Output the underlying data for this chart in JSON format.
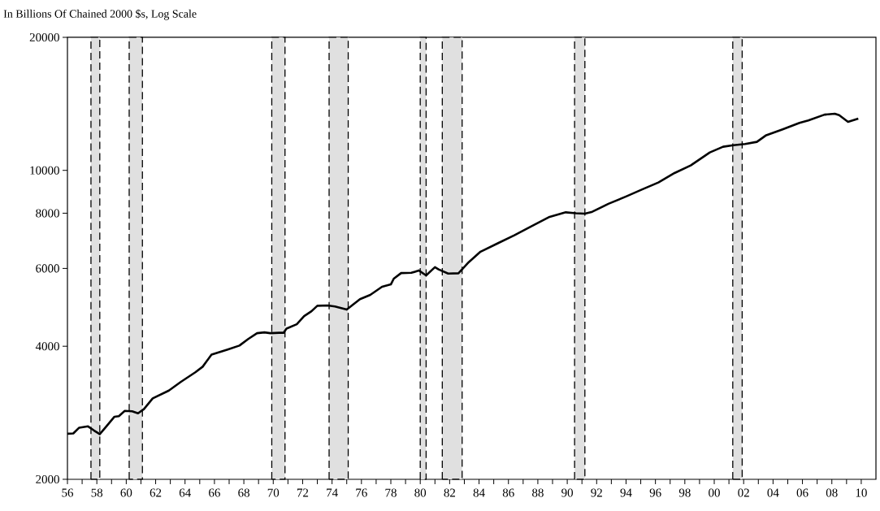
{
  "chart_data": {
    "type": "line",
    "ylabel": "In Billions Of Chained 2000 $s, Log Scale",
    "log": "y",
    "xlim": [
      1956,
      2011
    ],
    "ylim": [
      2000,
      20000
    ],
    "yticks": [
      2000,
      4000,
      6000,
      8000,
      10000,
      20000
    ],
    "xticks": [
      {
        "value": 1956,
        "label": "56"
      },
      {
        "value": 1957,
        "label": null
      },
      {
        "value": 1958,
        "label": "58"
      },
      {
        "value": 1959,
        "label": null
      },
      {
        "value": 1960,
        "label": "60"
      },
      {
        "value": 1961,
        "label": null
      },
      {
        "value": 1962,
        "label": "62"
      },
      {
        "value": 1963,
        "label": null
      },
      {
        "value": 1964,
        "label": "64"
      },
      {
        "value": 1965,
        "label": null
      },
      {
        "value": 1966,
        "label": "66"
      },
      {
        "value": 1967,
        "label": null
      },
      {
        "value": 1968,
        "label": "68"
      },
      {
        "value": 1969,
        "label": null
      },
      {
        "value": 1970,
        "label": "70"
      },
      {
        "value": 1971,
        "label": null
      },
      {
        "value": 1972,
        "label": "72"
      },
      {
        "value": 1973,
        "label": null
      },
      {
        "value": 1974,
        "label": "74"
      },
      {
        "value": 1975,
        "label": null
      },
      {
        "value": 1976,
        "label": "76"
      },
      {
        "value": 1977,
        "label": null
      },
      {
        "value": 1978,
        "label": "78"
      },
      {
        "value": 1979,
        "label": null
      },
      {
        "value": 1980,
        "label": "80"
      },
      {
        "value": 1981,
        "label": null
      },
      {
        "value": 1982,
        "label": "82"
      },
      {
        "value": 1983,
        "label": null
      },
      {
        "value": 1984,
        "label": "84"
      },
      {
        "value": 1985,
        "label": null
      },
      {
        "value": 1986,
        "label": "86"
      },
      {
        "value": 1987,
        "label": null
      },
      {
        "value": 1988,
        "label": "88"
      },
      {
        "value": 1989,
        "label": null
      },
      {
        "value": 1990,
        "label": "90"
      },
      {
        "value": 1991,
        "label": null
      },
      {
        "value": 1992,
        "label": "92"
      },
      {
        "value": 1993,
        "label": null
      },
      {
        "value": 1994,
        "label": "94"
      },
      {
        "value": 1995,
        "label": null
      },
      {
        "value": 1996,
        "label": "96"
      },
      {
        "value": 1997,
        "label": null
      },
      {
        "value": 1998,
        "label": "98"
      },
      {
        "value": 1999,
        "label": null
      },
      {
        "value": 2000,
        "label": "00"
      },
      {
        "value": 2001,
        "label": null
      },
      {
        "value": 2002,
        "label": "02"
      },
      {
        "value": 2003,
        "label": null
      },
      {
        "value": 2004,
        "label": "04"
      },
      {
        "value": 2005,
        "label": null
      },
      {
        "value": 2006,
        "label": "06"
      },
      {
        "value": 2007,
        "label": null
      },
      {
        "value": 2008,
        "label": "08"
      },
      {
        "value": 2009,
        "label": null
      },
      {
        "value": 2010,
        "label": "10"
      }
    ],
    "x": [
      1956.0,
      1956.4,
      1956.8,
      1957.4,
      1957.8,
      1958.2,
      1958.6,
      1959.2,
      1959.5,
      1959.9,
      1960.4,
      1960.8,
      1961.2,
      1961.8,
      1962.9,
      1963.7,
      1964.7,
      1965.2,
      1965.8,
      1966.9,
      1967.7,
      1968.3,
      1968.9,
      1969.4,
      1969.8,
      1970.4,
      1970.7,
      1970.9,
      1971.6,
      1972.1,
      1972.6,
      1973.0,
      1973.7,
      1974.2,
      1975.0,
      1975.9,
      1976.6,
      1977.4,
      1978.0,
      1978.2,
      1978.7,
      1979.4,
      1979.9,
      1980.4,
      1981.0,
      1981.25,
      1981.9,
      1982.6,
      1983.3,
      1984.1,
      1985.3,
      1986.4,
      1987.5,
      1988.8,
      1989.9,
      1990.6,
      1991.2,
      1991.7,
      1992.8,
      1994.0,
      1995.1,
      1996.2,
      1997.3,
      1998.4,
      1999.7,
      2000.6,
      2001.3,
      2002.1,
      2002.9,
      2003.5,
      2004.65,
      2005.8,
      2006.4,
      2007.5,
      2008.2,
      2008.5,
      2009.1,
      2009.8
    ],
    "series": [
      {
        "color": "#000000",
        "line_style": "solid",
        "values": [
          2536,
          2540,
          2617,
          2635,
          2580,
          2530,
          2624,
          2771,
          2780,
          2857,
          2850,
          2820,
          2882,
          3049,
          3176,
          3320,
          3493,
          3596,
          3829,
          3934,
          4014,
          4154,
          4282,
          4300,
          4282,
          4290,
          4290,
          4386,
          4485,
          4679,
          4800,
          4939,
          4946,
          4920,
          4841,
          5113,
          5227,
          5454,
          5520,
          5689,
          5856,
          5864,
          5937,
          5786,
          6038,
          5970,
          5841,
          5850,
          6200,
          6547,
          6846,
          7131,
          7456,
          7850,
          8037,
          8000,
          7982,
          8060,
          8400,
          8726,
          9055,
          9388,
          9863,
          10260,
          10980,
          11310,
          11400,
          11470,
          11600,
          11990,
          12380,
          12810,
          12970,
          13370,
          13430,
          13330,
          12880,
          13100
        ]
      }
    ],
    "bands": [
      {
        "axis": "x",
        "from": 1957.6,
        "to": 1958.2,
        "color": "#e0e0e0"
      },
      {
        "axis": "x",
        "from": 1960.2,
        "to": 1961.1,
        "color": "#e0e0e0"
      },
      {
        "axis": "x",
        "from": 1969.9,
        "to": 1970.8,
        "color": "#e0e0e0"
      },
      {
        "axis": "x",
        "from": 1973.8,
        "to": 1975.1,
        "color": "#e0e0e0"
      },
      {
        "axis": "x",
        "from": 1980.0,
        "to": 1980.4,
        "color": "#e0e0e0"
      },
      {
        "axis": "x",
        "from": 1981.5,
        "to": 1982.85,
        "color": "#e0e0e0"
      },
      {
        "axis": "x",
        "from": 1990.5,
        "to": 1991.2,
        "color": "#e0e0e0"
      },
      {
        "axis": "x",
        "from": 2001.26,
        "to": 2001.9,
        "color": "#e0e0e0"
      }
    ]
  }
}
